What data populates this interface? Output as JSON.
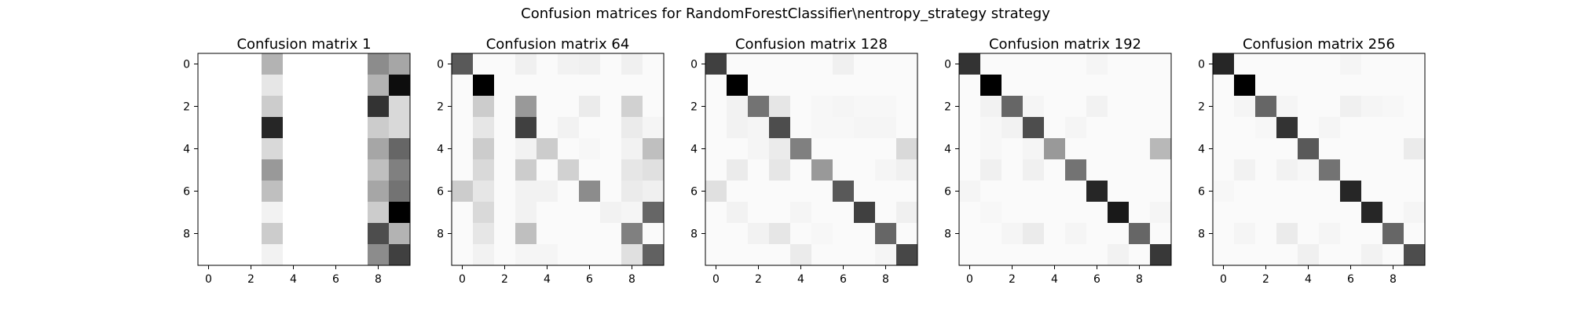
{
  "figure": {
    "suptitle": "Confusion matrices for RandomForestClassifier\\nentropy_strategy strategy"
  },
  "chart_data": [
    {
      "type": "heatmap",
      "title": "Confusion matrix 1",
      "colormap": "gray_r",
      "xticks": [
        "0",
        "2",
        "4",
        "6",
        "8"
      ],
      "yticks": [
        "0",
        "2",
        "4",
        "6",
        "8"
      ],
      "grid": false,
      "values": [
        [
          0,
          0,
          0,
          0.3,
          0,
          0,
          0,
          0,
          0.45,
          0.35
        ],
        [
          0,
          0,
          0,
          0.1,
          0,
          0,
          0,
          0,
          0.3,
          0.95
        ],
        [
          0,
          0,
          0,
          0.2,
          0,
          0,
          0,
          0,
          0.8,
          0.15
        ],
        [
          0,
          0,
          0,
          0.85,
          0,
          0,
          0,
          0,
          0.2,
          0.15
        ],
        [
          0,
          0,
          0,
          0.15,
          0,
          0,
          0,
          0,
          0.35,
          0.6
        ],
        [
          0,
          0,
          0,
          0.4,
          0,
          0,
          0,
          0,
          0.25,
          0.5
        ],
        [
          0,
          0,
          0,
          0.25,
          0,
          0,
          0,
          0,
          0.35,
          0.55
        ],
        [
          0,
          0,
          0,
          0.05,
          0,
          0,
          0,
          0,
          0.2,
          1.0
        ],
        [
          0,
          0,
          0,
          0.2,
          0,
          0,
          0,
          0,
          0.7,
          0.3
        ],
        [
          0,
          0,
          0,
          0.05,
          0,
          0,
          0,
          0,
          0.45,
          0.75
        ]
      ]
    },
    {
      "type": "heatmap",
      "title": "Confusion matrix 64",
      "colormap": "gray_r",
      "xticks": [
        "0",
        "2",
        "4",
        "6",
        "8"
      ],
      "yticks": [
        "0",
        "2",
        "4",
        "6",
        "8"
      ],
      "grid": false,
      "values": [
        [
          0.65,
          0.02,
          0.02,
          0.06,
          0.02,
          0.05,
          0.06,
          0.02,
          0.06,
          0.02
        ],
        [
          0.02,
          1.0,
          0.02,
          0.02,
          0.02,
          0.02,
          0.02,
          0.02,
          0.02,
          0.02
        ],
        [
          0.02,
          0.2,
          0.02,
          0.4,
          0.02,
          0.02,
          0.08,
          0.02,
          0.18,
          0.02
        ],
        [
          0.02,
          0.1,
          0.02,
          0.75,
          0.02,
          0.05,
          0.02,
          0.02,
          0.08,
          0.04
        ],
        [
          0.02,
          0.2,
          0.02,
          0.05,
          0.2,
          0.02,
          0.03,
          0.02,
          0.05,
          0.25
        ],
        [
          0.02,
          0.15,
          0.02,
          0.2,
          0.02,
          0.18,
          0.02,
          0.02,
          0.1,
          0.12
        ],
        [
          0.2,
          0.1,
          0.02,
          0.05,
          0.05,
          0.02,
          0.45,
          0.02,
          0.08,
          0.06
        ],
        [
          0.02,
          0.15,
          0.02,
          0.05,
          0.02,
          0.02,
          0.02,
          0.05,
          0.04,
          0.6
        ],
        [
          0.02,
          0.1,
          0.02,
          0.25,
          0.02,
          0.02,
          0.02,
          0.02,
          0.5,
          0.02
        ],
        [
          0.02,
          0.05,
          0.02,
          0.04,
          0.04,
          0.02,
          0.02,
          0.02,
          0.12,
          0.62
        ]
      ]
    },
    {
      "type": "heatmap",
      "title": "Confusion matrix 128",
      "colormap": "gray_r",
      "xticks": [
        "0",
        "2",
        "4",
        "6",
        "8"
      ],
      "yticks": [
        "0",
        "2",
        "4",
        "6",
        "8"
      ],
      "grid": false,
      "values": [
        [
          0.75,
          0.02,
          0.02,
          0.02,
          0.02,
          0.02,
          0.06,
          0.02,
          0.02,
          0.02
        ],
        [
          0.02,
          1.0,
          0.02,
          0.02,
          0.02,
          0.02,
          0.02,
          0.02,
          0.02,
          0.02
        ],
        [
          0.02,
          0.05,
          0.55,
          0.1,
          0.02,
          0.03,
          0.04,
          0.03,
          0.03,
          0.02
        ],
        [
          0.02,
          0.05,
          0.04,
          0.7,
          0.02,
          0.03,
          0.03,
          0.04,
          0.04,
          0.02
        ],
        [
          0.02,
          0.02,
          0.04,
          0.08,
          0.5,
          0.02,
          0.02,
          0.02,
          0.02,
          0.15
        ],
        [
          0.02,
          0.08,
          0.02,
          0.1,
          0.02,
          0.4,
          0.02,
          0.02,
          0.04,
          0.06
        ],
        [
          0.12,
          0.02,
          0.02,
          0.02,
          0.02,
          0.02,
          0.65,
          0.02,
          0.02,
          0.02
        ],
        [
          0.02,
          0.05,
          0.02,
          0.02,
          0.04,
          0.02,
          0.02,
          0.75,
          0.02,
          0.06
        ],
        [
          0.02,
          0.02,
          0.05,
          0.1,
          0.02,
          0.03,
          0.02,
          0.02,
          0.6,
          0.02
        ],
        [
          0.02,
          0.02,
          0.02,
          0.02,
          0.08,
          0.02,
          0.02,
          0.02,
          0.04,
          0.72
        ]
      ]
    },
    {
      "type": "heatmap",
      "title": "Confusion matrix 192",
      "colormap": "gray_r",
      "xticks": [
        "0",
        "2",
        "4",
        "6",
        "8"
      ],
      "yticks": [
        "0",
        "2",
        "4",
        "6",
        "8"
      ],
      "grid": false,
      "values": [
        [
          0.8,
          0.02,
          0.02,
          0.02,
          0.02,
          0.02,
          0.04,
          0.02,
          0.02,
          0.02
        ],
        [
          0.02,
          1.0,
          0.02,
          0.02,
          0.02,
          0.02,
          0.02,
          0.02,
          0.02,
          0.02
        ],
        [
          0.02,
          0.05,
          0.6,
          0.04,
          0.02,
          0.02,
          0.05,
          0.02,
          0.02,
          0.02
        ],
        [
          0.02,
          0.03,
          0.05,
          0.7,
          0.02,
          0.04,
          0.02,
          0.02,
          0.02,
          0.02
        ],
        [
          0.02,
          0.03,
          0.02,
          0.04,
          0.4,
          0.02,
          0.02,
          0.02,
          0.02,
          0.28
        ],
        [
          0.02,
          0.06,
          0.02,
          0.06,
          0.02,
          0.55,
          0.02,
          0.02,
          0.02,
          0.02
        ],
        [
          0.04,
          0.02,
          0.02,
          0.02,
          0.02,
          0.02,
          0.85,
          0.02,
          0.02,
          0.02
        ],
        [
          0.02,
          0.03,
          0.02,
          0.02,
          0.02,
          0.02,
          0.02,
          0.9,
          0.02,
          0.04
        ],
        [
          0.02,
          0.02,
          0.04,
          0.08,
          0.02,
          0.04,
          0.02,
          0.02,
          0.6,
          0.02
        ],
        [
          0.02,
          0.02,
          0.02,
          0.02,
          0.02,
          0.02,
          0.02,
          0.05,
          0.02,
          0.78
        ]
      ]
    },
    {
      "type": "heatmap",
      "title": "Confusion matrix 256",
      "colormap": "gray_r",
      "xticks": [
        "0",
        "2",
        "4",
        "6",
        "8"
      ],
      "yticks": [
        "0",
        "2",
        "4",
        "6",
        "8"
      ],
      "grid": false,
      "values": [
        [
          0.85,
          0.02,
          0.02,
          0.02,
          0.02,
          0.02,
          0.04,
          0.02,
          0.02,
          0.02
        ],
        [
          0.02,
          1.0,
          0.02,
          0.02,
          0.02,
          0.02,
          0.02,
          0.02,
          0.02,
          0.02
        ],
        [
          0.02,
          0.04,
          0.6,
          0.04,
          0.02,
          0.02,
          0.06,
          0.04,
          0.03,
          0.02
        ],
        [
          0.02,
          0.02,
          0.03,
          0.8,
          0.02,
          0.04,
          0.02,
          0.02,
          0.02,
          0.02
        ],
        [
          0.02,
          0.02,
          0.02,
          0.02,
          0.65,
          0.02,
          0.02,
          0.02,
          0.02,
          0.08
        ],
        [
          0.02,
          0.05,
          0.02,
          0.05,
          0.03,
          0.55,
          0.02,
          0.02,
          0.02,
          0.02
        ],
        [
          0.03,
          0.02,
          0.02,
          0.02,
          0.02,
          0.02,
          0.85,
          0.02,
          0.02,
          0.02
        ],
        [
          0.02,
          0.02,
          0.02,
          0.02,
          0.02,
          0.02,
          0.02,
          0.85,
          0.02,
          0.04
        ],
        [
          0.02,
          0.04,
          0.02,
          0.08,
          0.02,
          0.04,
          0.02,
          0.02,
          0.6,
          0.02
        ],
        [
          0.02,
          0.02,
          0.02,
          0.02,
          0.06,
          0.02,
          0.02,
          0.05,
          0.02,
          0.7
        ]
      ]
    }
  ]
}
